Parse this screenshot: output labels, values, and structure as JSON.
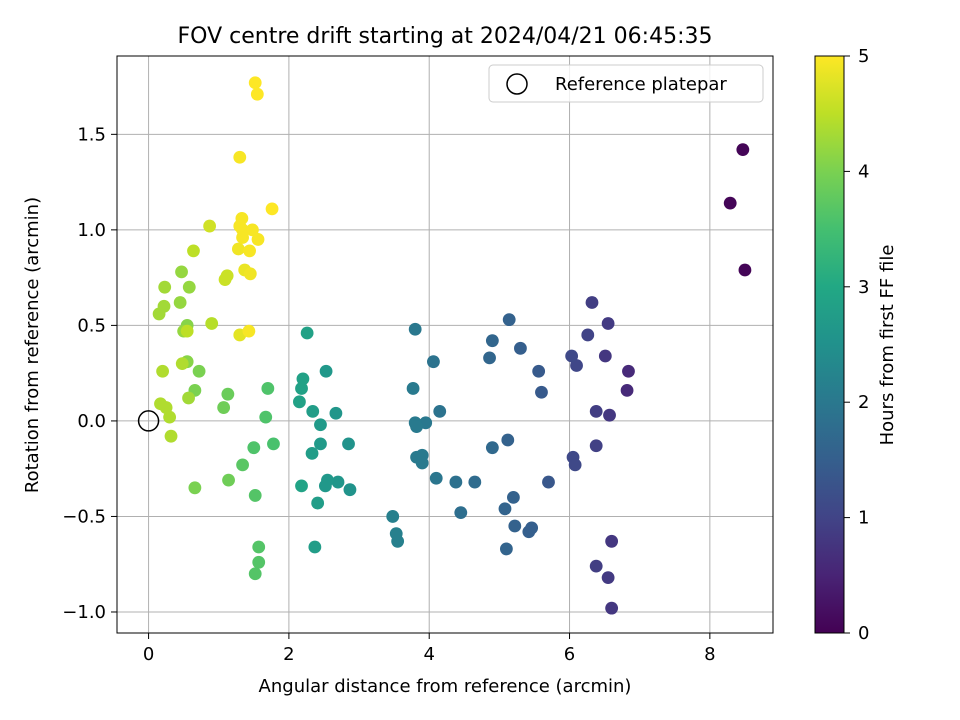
{
  "chart_data": {
    "type": "scatter",
    "title": "FOV centre drift starting at 2024/04/21 06:45:35",
    "xlabel": "Angular distance from reference (arcmin)",
    "ylabel": "Rotation from reference (arcmin)",
    "xlim": [
      -0.45,
      8.9
    ],
    "ylim": [
      -1.11,
      1.91
    ],
    "xticks": [
      0,
      2,
      4,
      6,
      8
    ],
    "xtick_labels": [
      "0",
      "2",
      "4",
      "6",
      "8"
    ],
    "yticks": [
      -1.0,
      -0.5,
      0.0,
      0.5,
      1.0,
      1.5
    ],
    "ytick_labels": [
      "−1.0",
      "−0.5",
      "0.0",
      "0.5",
      "1.0",
      "1.5"
    ],
    "grid": true,
    "legend": {
      "position": "top-right",
      "label": "Reference platepar"
    },
    "reference_point": {
      "x": 0,
      "y": 0
    },
    "colorbar": {
      "label": "Hours from first FF file",
      "colormap": "viridis",
      "range": [
        0,
        5
      ],
      "ticks": [
        0,
        1,
        2,
        3,
        4,
        5
      ],
      "tick_labels": [
        "0",
        "1",
        "2",
        "3",
        "4",
        "5"
      ]
    },
    "points": [
      {
        "x": 8.47,
        "y": 1.42,
        "c": 0.05
      },
      {
        "x": 8.29,
        "y": 1.14,
        "c": 0.05
      },
      {
        "x": 8.5,
        "y": 0.79,
        "c": 0.05
      },
      {
        "x": 6.84,
        "y": 0.26,
        "c": 0.6
      },
      {
        "x": 6.82,
        "y": 0.16,
        "c": 0.6
      },
      {
        "x": 6.57,
        "y": 0.03,
        "c": 0.8
      },
      {
        "x": 6.38,
        "y": 0.05,
        "c": 0.9
      },
      {
        "x": 6.51,
        "y": 0.34,
        "c": 0.8
      },
      {
        "x": 6.55,
        "y": 0.51,
        "c": 0.85
      },
      {
        "x": 6.32,
        "y": 0.62,
        "c": 0.9
      },
      {
        "x": 6.26,
        "y": 0.45,
        "c": 1.0
      },
      {
        "x": 6.1,
        "y": 0.29,
        "c": 1.05
      },
      {
        "x": 6.03,
        "y": 0.34,
        "c": 1.1
      },
      {
        "x": 6.38,
        "y": -0.13,
        "c": 0.95
      },
      {
        "x": 6.05,
        "y": -0.19,
        "c": 1.1
      },
      {
        "x": 6.08,
        "y": -0.23,
        "c": 1.1
      },
      {
        "x": 6.6,
        "y": -0.63,
        "c": 0.8
      },
      {
        "x": 6.38,
        "y": -0.76,
        "c": 0.9
      },
      {
        "x": 6.55,
        "y": -0.82,
        "c": 0.85
      },
      {
        "x": 6.6,
        "y": -0.98,
        "c": 0.8
      },
      {
        "x": 5.7,
        "y": -0.32,
        "c": 1.35
      },
      {
        "x": 5.56,
        "y": 0.26,
        "c": 1.4
      },
      {
        "x": 5.6,
        "y": 0.15,
        "c": 1.4
      },
      {
        "x": 5.3,
        "y": 0.38,
        "c": 1.5
      },
      {
        "x": 5.14,
        "y": 0.53,
        "c": 1.55
      },
      {
        "x": 5.12,
        "y": -0.1,
        "c": 1.55
      },
      {
        "x": 5.2,
        "y": -0.4,
        "c": 1.55
      },
      {
        "x": 5.22,
        "y": -0.55,
        "c": 1.55
      },
      {
        "x": 5.08,
        "y": -0.46,
        "c": 1.6
      },
      {
        "x": 5.42,
        "y": -0.58,
        "c": 1.5
      },
      {
        "x": 5.46,
        "y": -0.56,
        "c": 1.5
      },
      {
        "x": 5.1,
        "y": -0.67,
        "c": 1.6
      },
      {
        "x": 4.9,
        "y": 0.42,
        "c": 1.65
      },
      {
        "x": 4.86,
        "y": 0.33,
        "c": 1.65
      },
      {
        "x": 4.9,
        "y": -0.14,
        "c": 1.7
      },
      {
        "x": 4.65,
        "y": -0.32,
        "c": 1.75
      },
      {
        "x": 4.45,
        "y": -0.48,
        "c": 1.8
      },
      {
        "x": 4.38,
        "y": -0.32,
        "c": 1.85
      },
      {
        "x": 4.15,
        "y": 0.05,
        "c": 1.9
      },
      {
        "x": 4.06,
        "y": 0.31,
        "c": 1.9
      },
      {
        "x": 4.1,
        "y": -0.3,
        "c": 1.95
      },
      {
        "x": 3.95,
        "y": -0.01,
        "c": 2.0
      },
      {
        "x": 3.8,
        "y": 0.48,
        "c": 2.0
      },
      {
        "x": 3.77,
        "y": 0.17,
        "c": 2.05
      },
      {
        "x": 3.8,
        "y": -0.01,
        "c": 2.05
      },
      {
        "x": 3.82,
        "y": -0.03,
        "c": 2.05
      },
      {
        "x": 3.82,
        "y": -0.19,
        "c": 2.05
      },
      {
        "x": 3.9,
        "y": -0.18,
        "c": 2.05
      },
      {
        "x": 3.9,
        "y": -0.22,
        "c": 2.05
      },
      {
        "x": 3.48,
        "y": -0.5,
        "c": 2.15
      },
      {
        "x": 3.53,
        "y": -0.59,
        "c": 2.15
      },
      {
        "x": 3.55,
        "y": -0.63,
        "c": 2.15
      },
      {
        "x": 2.85,
        "y": -0.12,
        "c": 2.55
      },
      {
        "x": 2.87,
        "y": -0.36,
        "c": 2.55
      },
      {
        "x": 2.67,
        "y": 0.04,
        "c": 2.6
      },
      {
        "x": 2.7,
        "y": -0.32,
        "c": 2.6
      },
      {
        "x": 2.53,
        "y": 0.26,
        "c": 2.65
      },
      {
        "x": 2.55,
        "y": -0.31,
        "c": 2.65
      },
      {
        "x": 2.52,
        "y": -0.34,
        "c": 2.65
      },
      {
        "x": 2.45,
        "y": -0.02,
        "c": 2.7
      },
      {
        "x": 2.45,
        "y": -0.12,
        "c": 2.7
      },
      {
        "x": 2.41,
        "y": -0.43,
        "c": 2.75
      },
      {
        "x": 2.34,
        "y": 0.05,
        "c": 2.75
      },
      {
        "x": 2.33,
        "y": -0.17,
        "c": 2.75
      },
      {
        "x": 2.37,
        "y": -0.66,
        "c": 2.75
      },
      {
        "x": 2.26,
        "y": 0.46,
        "c": 2.85
      },
      {
        "x": 2.2,
        "y": 0.22,
        "c": 2.85
      },
      {
        "x": 2.18,
        "y": 0.17,
        "c": 2.85
      },
      {
        "x": 2.15,
        "y": 0.1,
        "c": 2.85
      },
      {
        "x": 2.18,
        "y": -0.34,
        "c": 2.9
      },
      {
        "x": 1.78,
        "y": -0.12,
        "c": 3.55
      },
      {
        "x": 1.7,
        "y": 0.17,
        "c": 3.6
      },
      {
        "x": 1.67,
        "y": 0.02,
        "c": 3.6
      },
      {
        "x": 1.5,
        "y": -0.14,
        "c": 3.6
      },
      {
        "x": 1.52,
        "y": -0.39,
        "c": 3.65
      },
      {
        "x": 1.57,
        "y": -0.66,
        "c": 3.65
      },
      {
        "x": 1.57,
        "y": -0.74,
        "c": 3.65
      },
      {
        "x": 1.52,
        "y": -0.8,
        "c": 3.65
      },
      {
        "x": 1.34,
        "y": -0.23,
        "c": 3.7
      },
      {
        "x": 1.13,
        "y": 0.14,
        "c": 3.85
      },
      {
        "x": 1.07,
        "y": 0.07,
        "c": 3.9
      },
      {
        "x": 1.14,
        "y": -0.31,
        "c": 3.9
      },
      {
        "x": 0.72,
        "y": 0.26,
        "c": 4.0
      },
      {
        "x": 0.66,
        "y": 0.16,
        "c": 4.0
      },
      {
        "x": 0.66,
        "y": -0.35,
        "c": 4.0
      },
      {
        "x": 0.55,
        "y": 0.31,
        "c": 4.1
      },
      {
        "x": 0.55,
        "y": 0.5,
        "c": 4.1
      },
      {
        "x": 0.5,
        "y": 0.47,
        "c": 4.2
      },
      {
        "x": 0.45,
        "y": 0.62,
        "c": 4.2
      },
      {
        "x": 0.47,
        "y": 0.78,
        "c": 4.2
      },
      {
        "x": 0.58,
        "y": 0.7,
        "c": 4.2
      },
      {
        "x": 0.57,
        "y": 0.12,
        "c": 4.3
      },
      {
        "x": 0.32,
        "y": -0.08,
        "c": 4.4
      },
      {
        "x": 0.3,
        "y": 0.02,
        "c": 4.4
      },
      {
        "x": 0.25,
        "y": 0.07,
        "c": 4.4
      },
      {
        "x": 0.17,
        "y": 0.09,
        "c": 4.4
      },
      {
        "x": 0.2,
        "y": 0.26,
        "c": 4.4
      },
      {
        "x": 0.15,
        "y": 0.56,
        "c": 4.3
      },
      {
        "x": 0.22,
        "y": 0.6,
        "c": 4.3
      },
      {
        "x": 0.23,
        "y": 0.7,
        "c": 4.3
      },
      {
        "x": 0.48,
        "y": 0.3,
        "c": 4.4
      },
      {
        "x": 0.55,
        "y": 0.47,
        "c": 4.5
      },
      {
        "x": 0.9,
        "y": 0.51,
        "c": 4.45
      },
      {
        "x": 0.64,
        "y": 0.89,
        "c": 4.5
      },
      {
        "x": 1.09,
        "y": 0.74,
        "c": 4.6
      },
      {
        "x": 1.12,
        "y": 0.76,
        "c": 4.6
      },
      {
        "x": 0.87,
        "y": 1.02,
        "c": 4.65
      },
      {
        "x": 1.3,
        "y": 0.45,
        "c": 4.8
      },
      {
        "x": 1.43,
        "y": 0.47,
        "c": 4.95
      },
      {
        "x": 1.37,
        "y": 0.79,
        "c": 4.85
      },
      {
        "x": 1.45,
        "y": 0.77,
        "c": 4.9
      },
      {
        "x": 1.28,
        "y": 0.9,
        "c": 4.9
      },
      {
        "x": 1.34,
        "y": 0.96,
        "c": 4.95
      },
      {
        "x": 1.34,
        "y": 1.0,
        "c": 4.95
      },
      {
        "x": 1.3,
        "y": 1.02,
        "c": 4.95
      },
      {
        "x": 1.33,
        "y": 1.06,
        "c": 4.95
      },
      {
        "x": 1.44,
        "y": 0.89,
        "c": 4.95
      },
      {
        "x": 1.48,
        "y": 1.0,
        "c": 4.95
      },
      {
        "x": 1.56,
        "y": 0.95,
        "c": 4.95
      },
      {
        "x": 1.76,
        "y": 1.11,
        "c": 5.0
      },
      {
        "x": 1.3,
        "y": 1.38,
        "c": 4.95
      },
      {
        "x": 1.52,
        "y": 1.77,
        "c": 5.0
      },
      {
        "x": 1.55,
        "y": 1.71,
        "c": 5.0
      }
    ]
  }
}
